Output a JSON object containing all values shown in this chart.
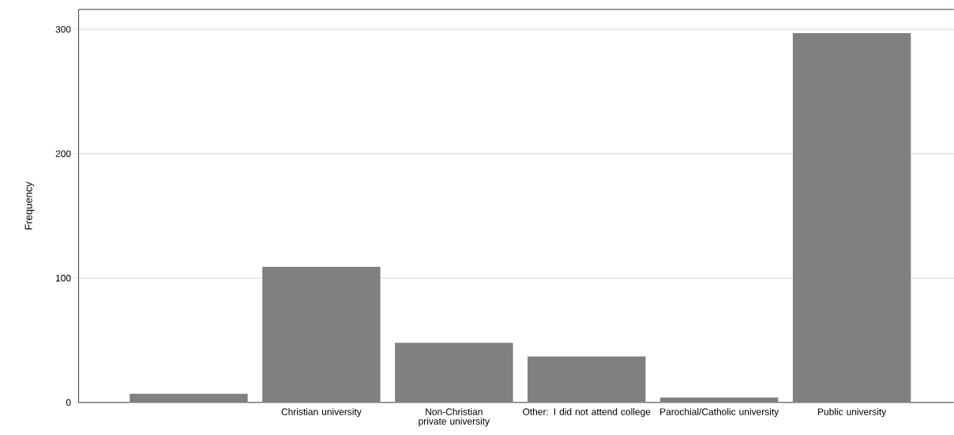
{
  "chart_data": {
    "type": "bar",
    "ylabel": "Frequency",
    "categories": [
      null,
      "Christian university",
      "Non-Christian private university",
      "Other: I did not attend college",
      "Parochial/Catholic university",
      "Public university"
    ],
    "values": [
      7,
      109,
      48,
      37,
      4,
      297
    ],
    "color": "#808080",
    "ylim": [
      0,
      316
    ],
    "yticks": [
      0,
      100,
      200,
      300
    ],
    "grid": "y"
  }
}
